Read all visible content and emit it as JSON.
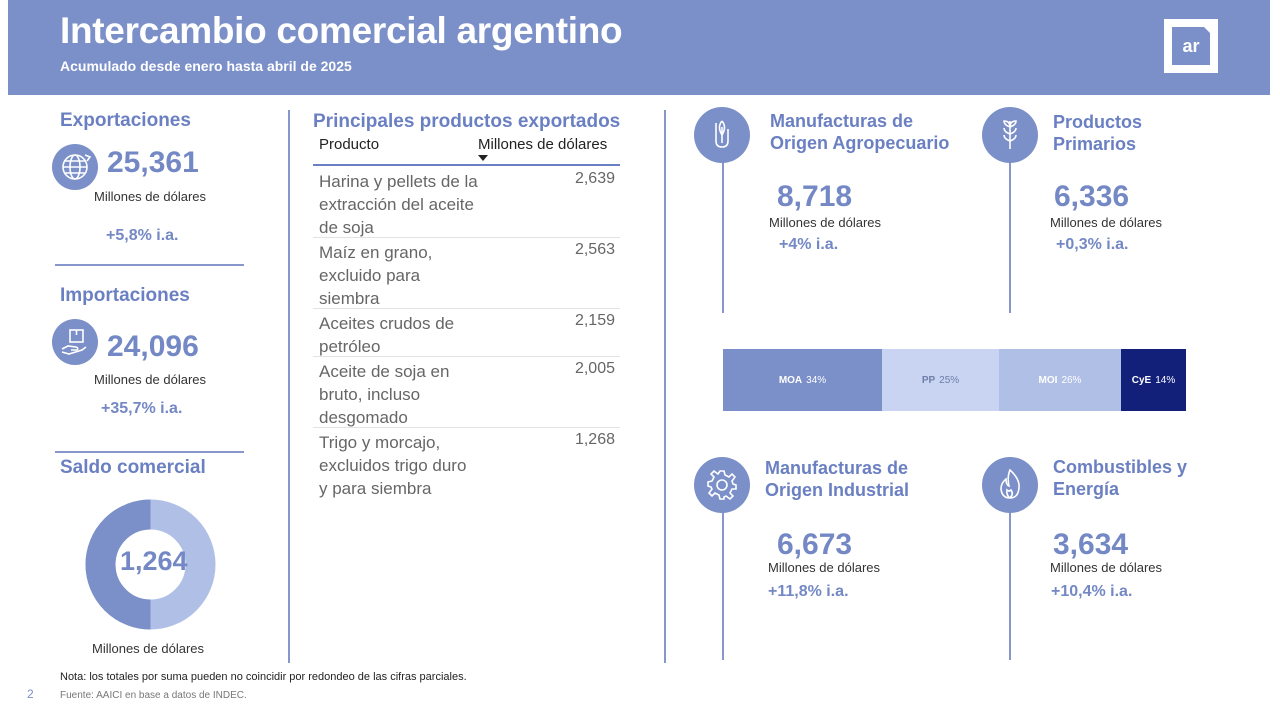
{
  "header": {
    "title": "Intercambio comercial argentino",
    "subtitle": "Acumulado desde enero hasta abril de 2025",
    "logo_text": "ar"
  },
  "exportaciones": {
    "title": "Exportaciones",
    "value": "25,361",
    "unit": "Millones de dólares",
    "change": "+5,8% i.a.",
    "icon": "globe-icon"
  },
  "importaciones": {
    "title": "Importaciones",
    "value": "24,096",
    "unit": "Millones de dólares",
    "change": "+35,7% i.a.",
    "icon": "package-hand-icon"
  },
  "saldo": {
    "title": "Saldo comercial",
    "value": "1,264",
    "unit": "Millones de dólares"
  },
  "products_table": {
    "title": "Principales productos exportados",
    "col_product": "Producto",
    "col_value": "Millones de dólares",
    "rows": [
      {
        "product": "Harina y pellets de la extracción del aceite de soja",
        "value": "2,639"
      },
      {
        "product": "Maíz en grano, excluido para siembra",
        "value": "2,563"
      },
      {
        "product": "Aceites crudos de petróleo",
        "value": "2,159"
      },
      {
        "product": "Aceite de soja en bruto, incluso desgomado",
        "value": "2,005"
      },
      {
        "product": "Trigo y morcajo, excluidos trigo duro y para siembra",
        "value": "1,268"
      }
    ]
  },
  "categories": {
    "moa": {
      "title1": "Manufacturas de",
      "title2": "Origen Agropecuario",
      "value": "8,718",
      "unit": "Millones de dólares",
      "change": "+4% i.a.",
      "icon": "hand-leaf-icon"
    },
    "pp": {
      "title1": "Productos",
      "title2": "Primarios",
      "value": "6,336",
      "unit": "Millones de dólares",
      "change": "+0,3% i.a.",
      "icon": "wheat-icon"
    },
    "moi": {
      "title1": "Manufacturas de",
      "title2": "Origen Industrial",
      "value": "6,673",
      "unit": "Millones de dólares",
      "change": "+11,8% i.a.",
      "icon": "gear-icon"
    },
    "cye": {
      "title1": "Combustibles y",
      "title2": "Energía",
      "value": "3,634",
      "unit": "Millones de dólares",
      "change": "+10,4% i.a.",
      "icon": "flame-icon"
    }
  },
  "share_bar": {
    "segments": [
      {
        "label": "MOA",
        "pct": "34%",
        "share": 34,
        "color": "#7b8fc8",
        "text_color": "#ffffff"
      },
      {
        "label": "PP",
        "pct": "25%",
        "share": 25,
        "color": "#c9d4f3",
        "text_color": "#6f7ea8"
      },
      {
        "label": "MOI",
        "pct": "26%",
        "share": 26,
        "color": "#b0bfe6",
        "text_color": "#ffffff"
      },
      {
        "label": "CyE",
        "pct": "14%",
        "share": 14,
        "color": "#13207a",
        "text_color": "#ffffff"
      }
    ]
  },
  "footer": {
    "note": "Nota: los totales por suma pueden no coincidir por redondeo de las cifras parciales.",
    "source": "Fuente: AAICI en base a datos de INDEC.",
    "page": "2"
  },
  "colors": {
    "accent": "#7b8fc8",
    "accent_dark": "#13207a",
    "donut_light": "#b0bfe6"
  }
}
